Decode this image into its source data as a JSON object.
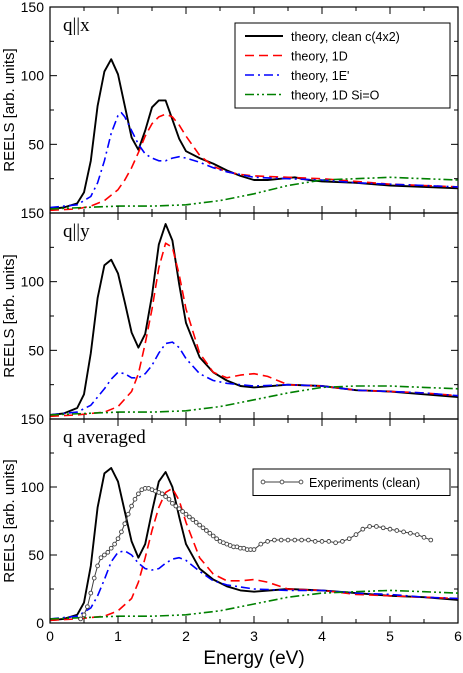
{
  "chart_data": {
    "type": "line",
    "xlabel": "Energy (eV)",
    "ylabel": "REELS [arb. units]",
    "xlim": [
      0,
      6
    ],
    "xticks": [
      "0",
      "1",
      "2",
      "3",
      "4",
      "5",
      "6"
    ],
    "grid": false,
    "panels": [
      {
        "label": "q||x",
        "ylim": [
          0,
          150
        ],
        "yticks": [
          "50",
          "100",
          "150"
        ],
        "legend": {
          "placement": "top-right",
          "entries": [
            "theory, clean c(4x2)",
            "theory, 1D",
            "theory, 1E'",
            "theory, 1D Si=O"
          ]
        },
        "series": [
          {
            "name": "theory, clean c(4x2)",
            "color": "#000000",
            "style": "solid",
            "x": [
              0,
              0.2,
              0.4,
              0.5,
              0.6,
              0.7,
              0.8,
              0.9,
              1.0,
              1.1,
              1.2,
              1.3,
              1.4,
              1.5,
              1.6,
              1.7,
              1.8,
              1.9,
              2.0,
              2.2,
              2.4,
              2.6,
              2.8,
              3.0,
              3.2,
              3.4,
              3.6,
              3.8,
              4.0,
              4.5,
              5.0,
              5.5,
              6.0
            ],
            "y": [
              3,
              4,
              7,
              15,
              38,
              78,
              103,
              112,
              101,
              78,
              55,
              46,
              60,
              77,
              82,
              82,
              68,
              54,
              45,
              40,
              36,
              31,
              27,
              24,
              24,
              25,
              26,
              24,
              23,
              22,
              20,
              19,
              18
            ]
          },
          {
            "name": "theory, 1D",
            "color": "#ff0000",
            "style": "dashed",
            "x": [
              0,
              0.4,
              0.6,
              0.8,
              1.0,
              1.1,
              1.2,
              1.3,
              1.4,
              1.5,
              1.6,
              1.7,
              1.8,
              1.9,
              2.0,
              2.2,
              2.4,
              2.6,
              2.8,
              3.0,
              3.5,
              4.0,
              4.5,
              5.0,
              5.5,
              6.0
            ],
            "y": [
              2,
              3,
              5,
              9,
              17,
              24,
              33,
              44,
              56,
              65,
              70,
              72,
              70,
              64,
              56,
              42,
              34,
              30,
              28,
              27,
              26,
              25,
              23,
              21,
              20,
              19
            ]
          },
          {
            "name": "theory, 1E'",
            "color": "#0000ff",
            "style": "dashdot",
            "x": [
              0,
              0.4,
              0.6,
              0.7,
              0.8,
              0.9,
              1.0,
              1.05,
              1.1,
              1.2,
              1.3,
              1.4,
              1.5,
              1.6,
              1.7,
              1.8,
              1.9,
              2.0,
              2.2,
              2.4,
              2.6,
              3.0,
              3.5,
              4.0,
              4.5,
              5.0,
              5.5,
              6.0
            ],
            "y": [
              4,
              6,
              12,
              22,
              38,
              58,
              71,
              73,
              70,
              60,
              50,
              43,
              40,
              38,
              38,
              40,
              41,
              40,
              37,
              33,
              30,
              26,
              25,
              24,
              22,
              21,
              20,
              19
            ]
          },
          {
            "name": "theory, 1D Si=O",
            "color": "#008000",
            "style": "dashdotdot",
            "x": [
              0,
              0.5,
              1.0,
              1.5,
              2.0,
              2.5,
              3.0,
              3.5,
              4.0,
              4.5,
              5.0,
              5.5,
              6.0
            ],
            "y": [
              3,
              4,
              5,
              5,
              6,
              9,
              14,
              20,
              24,
              25,
              26,
              25,
              24
            ]
          }
        ]
      },
      {
        "label": "q||y",
        "ylim": [
          0,
          150
        ],
        "yticks": [
          "50",
          "100",
          "150"
        ],
        "series": [
          {
            "name": "theory, clean c(4x2)",
            "color": "#000000",
            "style": "solid",
            "x": [
              0,
              0.2,
              0.4,
              0.5,
              0.6,
              0.7,
              0.8,
              0.9,
              1.0,
              1.1,
              1.2,
              1.3,
              1.4,
              1.5,
              1.6,
              1.7,
              1.8,
              1.9,
              2.0,
              2.2,
              2.4,
              2.6,
              2.8,
              3.0,
              3.5,
              4.0,
              4.5,
              5.0,
              5.5,
              6.0
            ],
            "y": [
              3,
              4,
              8,
              18,
              48,
              88,
              112,
              116,
              106,
              85,
              63,
              52,
              62,
              90,
              127,
              142,
              130,
              98,
              70,
              45,
              34,
              28,
              24,
              23,
              25,
              24,
              21,
              20,
              18,
              16
            ]
          },
          {
            "name": "theory, 1D",
            "color": "#ff0000",
            "style": "dashed",
            "x": [
              0,
              0.4,
              0.8,
              1.0,
              1.2,
              1.3,
              1.4,
              1.5,
              1.6,
              1.7,
              1.8,
              1.9,
              2.0,
              2.2,
              2.4,
              2.6,
              2.8,
              3.0,
              3.2,
              3.5,
              4.0,
              4.5,
              5.0,
              5.5,
              6.0
            ],
            "y": [
              2,
              3,
              5,
              9,
              20,
              33,
              55,
              80,
              110,
              128,
              125,
              105,
              80,
              48,
              34,
              30,
              32,
              33,
              31,
              25,
              24,
              21,
              20,
              19,
              17
            ]
          },
          {
            "name": "theory, 1E'",
            "color": "#0000ff",
            "style": "dashdot",
            "x": [
              0,
              0.4,
              0.6,
              0.8,
              0.9,
              1.0,
              1.1,
              1.2,
              1.3,
              1.4,
              1.5,
              1.6,
              1.7,
              1.8,
              1.9,
              2.0,
              2.2,
              2.4,
              2.6,
              3.0,
              3.5,
              4.0,
              4.5,
              5.0,
              5.5,
              6.0
            ],
            "y": [
              3,
              5,
              10,
              22,
              29,
              34,
              33,
              30,
              30,
              33,
              39,
              48,
              55,
              56,
              52,
              44,
              33,
              28,
              26,
              24,
              25,
              24,
              21,
              20,
              19,
              17
            ]
          },
          {
            "name": "theory, 1D Si=O",
            "color": "#008000",
            "style": "dashdotdot",
            "x": [
              0,
              0.5,
              1.0,
              1.5,
              2.0,
              2.5,
              3.0,
              3.5,
              4.0,
              4.5,
              5.0,
              5.5,
              6.0
            ],
            "y": [
              3,
              4,
              5,
              5,
              6,
              9,
              14,
              19,
              23,
              24,
              24,
              23,
              22
            ]
          }
        ]
      },
      {
        "label": "q averaged",
        "ylim": [
          0,
          150
        ],
        "yticks": [
          "0",
          "50",
          "100",
          "150"
        ],
        "legend": {
          "placement": "top-right",
          "entries": [
            "Experiments (clean)"
          ]
        },
        "series": [
          {
            "name": "theory, clean c(4x2)",
            "color": "#000000",
            "style": "solid",
            "x": [
              0,
              0.2,
              0.4,
              0.5,
              0.6,
              0.7,
              0.8,
              0.9,
              1.0,
              1.1,
              1.2,
              1.3,
              1.4,
              1.5,
              1.6,
              1.7,
              1.8,
              1.9,
              2.0,
              2.2,
              2.4,
              2.6,
              2.8,
              3.0,
              3.5,
              4.0,
              4.5,
              5.0,
              5.5,
              6.0
            ],
            "y": [
              2,
              3,
              6,
              15,
              42,
              85,
              110,
              114,
              104,
              82,
              60,
              48,
              58,
              82,
              104,
              111,
              100,
              78,
              58,
              40,
              32,
              27,
              24,
              23,
              25,
              24,
              22,
              20,
              19,
              17
            ]
          },
          {
            "name": "theory, 1D",
            "color": "#ff0000",
            "style": "dashed",
            "x": [
              0,
              0.4,
              0.8,
              1.0,
              1.2,
              1.3,
              1.4,
              1.5,
              1.6,
              1.7,
              1.8,
              1.9,
              2.0,
              2.2,
              2.4,
              2.6,
              2.8,
              3.0,
              3.2,
              3.5,
              4.0,
              4.5,
              5.0,
              5.5,
              6.0
            ],
            "y": [
              2,
              3,
              5,
              9,
              18,
              30,
              48,
              68,
              85,
              96,
              99,
              90,
              74,
              48,
              36,
              31,
              31,
              32,
              30,
              25,
              24,
              21,
              20,
              19,
              18
            ]
          },
          {
            "name": "theory, 1E'",
            "color": "#0000ff",
            "style": "dashdot",
            "x": [
              0,
              0.4,
              0.6,
              0.7,
              0.8,
              0.9,
              1.0,
              1.1,
              1.2,
              1.3,
              1.4,
              1.5,
              1.6,
              1.7,
              1.8,
              1.9,
              2.0,
              2.2,
              2.4,
              2.6,
              3.0,
              3.5,
              4.0,
              4.5,
              5.0,
              5.5,
              6.0
            ],
            "y": [
              3,
              5,
              11,
              20,
              32,
              45,
              52,
              53,
              50,
              44,
              40,
              39,
              40,
              44,
              47,
              48,
              46,
              38,
              31,
              28,
              25,
              24,
              24,
              22,
              21,
              19,
              18
            ]
          },
          {
            "name": "theory, 1D Si=O",
            "color": "#008000",
            "style": "dashdotdot",
            "x": [
              0,
              0.5,
              1.0,
              1.5,
              2.0,
              2.5,
              3.0,
              3.5,
              4.0,
              4.5,
              5.0,
              5.5,
              6.0
            ],
            "y": [
              3,
              4,
              5,
              5,
              6,
              9,
              14,
              19,
              22,
              23,
              24,
              23,
              22
            ]
          },
          {
            "name": "Experiments (clean)",
            "color": "#404040",
            "style": "markers",
            "x": [
              0.45,
              0.5,
              0.55,
              0.6,
              0.65,
              0.7,
              0.75,
              0.8,
              0.85,
              0.9,
              0.95,
              1.0,
              1.05,
              1.1,
              1.15,
              1.2,
              1.25,
              1.3,
              1.35,
              1.4,
              1.45,
              1.5,
              1.55,
              1.6,
              1.65,
              1.7,
              1.75,
              1.8,
              1.85,
              1.9,
              1.95,
              2.0,
              2.05,
              2.1,
              2.15,
              2.2,
              2.25,
              2.3,
              2.35,
              2.4,
              2.45,
              2.5,
              2.55,
              2.6,
              2.65,
              2.7,
              2.75,
              2.8,
              2.85,
              2.9,
              2.95,
              3.0,
              3.1,
              3.2,
              3.3,
              3.4,
              3.5,
              3.6,
              3.7,
              3.8,
              3.9,
              4.0,
              4.1,
              4.2,
              4.3,
              4.4,
              4.5,
              4.6,
              4.7,
              4.8,
              4.9,
              5.0,
              5.1,
              5.2,
              5.3,
              5.4,
              5.5,
              5.6
            ],
            "y": [
              3,
              6,
              12,
              22,
              33,
              42,
              48,
              50,
              52,
              55,
              58,
              62,
              67,
              73,
              80,
              86,
              91,
              95,
              98,
              99,
              99,
              98,
              97,
              96,
              95,
              93,
              91,
              88,
              86,
              84,
              82,
              80,
              78,
              76,
              74,
              72,
              70,
              68,
              66,
              64,
              62,
              60,
              59,
              58,
              57,
              56,
              56,
              55,
              55,
              54,
              54,
              54,
              58,
              60,
              61,
              61,
              61,
              61,
              61,
              61,
              60,
              60,
              60,
              59,
              60,
              62,
              65,
              69,
              71,
              71,
              70,
              69,
              68,
              67,
              66,
              65,
              63,
              61
            ]
          }
        ]
      }
    ]
  }
}
